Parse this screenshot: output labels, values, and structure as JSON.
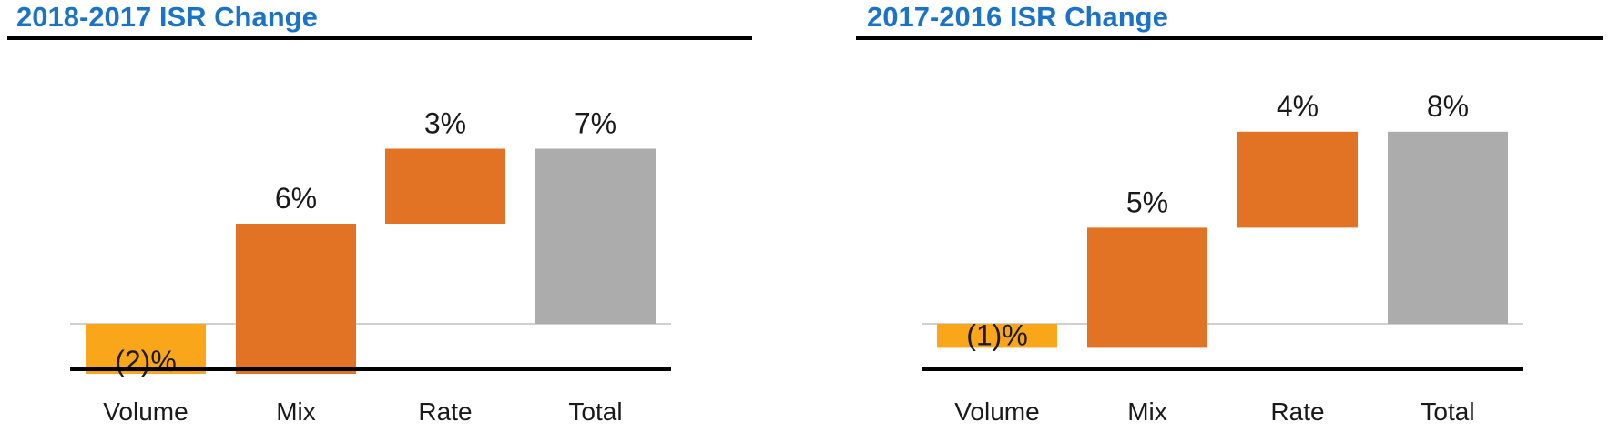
{
  "colors": {
    "title": "#1a73c8",
    "volume": "#f9a61a",
    "driver": "#e37324",
    "total": "#acacac",
    "zero_line": "#b5b5b5",
    "baseline": "#000000",
    "text": "#1a1a1a"
  },
  "chart_data": [
    {
      "type": "bar",
      "subtype": "waterfall",
      "title": "2018-2017 ISR Change",
      "categories": [
        "Volume",
        "Mix",
        "Rate",
        "Total"
      ],
      "values": [
        -2,
        6,
        3,
        7
      ],
      "value_labels": [
        "(2)%",
        "6%",
        "3%",
        "7%"
      ],
      "bar_kinds": [
        "volume",
        "driver",
        "driver",
        "total"
      ],
      "ylim": [
        -2,
        9
      ],
      "xlabel": "",
      "ylabel": "",
      "grid": false
    },
    {
      "type": "bar",
      "subtype": "waterfall",
      "title": "2017-2016 ISR Change",
      "categories": [
        "Volume",
        "Mix",
        "Rate",
        "Total"
      ],
      "values": [
        -1,
        5,
        4,
        8
      ],
      "value_labels": [
        "(1)%",
        "5%",
        "4%",
        "8%"
      ],
      "bar_kinds": [
        "volume",
        "driver",
        "driver",
        "total"
      ],
      "ylim": [
        -2,
        9
      ],
      "xlabel": "",
      "ylabel": "",
      "grid": false
    }
  ]
}
